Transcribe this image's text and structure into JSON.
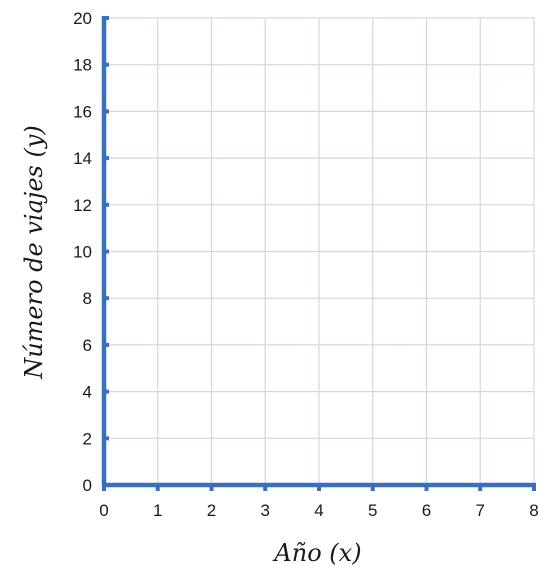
{
  "chart_data": {
    "type": "scatter",
    "title": "",
    "xlabel": "Año (x)",
    "ylabel": "Número de viajes (y)",
    "xlim": [
      0,
      8
    ],
    "ylim": [
      0,
      20
    ],
    "x_ticks": [
      0,
      1,
      2,
      3,
      4,
      5,
      6,
      7,
      8
    ],
    "y_ticks": [
      0,
      2,
      4,
      6,
      8,
      10,
      12,
      14,
      16,
      18,
      20
    ],
    "series": [],
    "grid": true,
    "legend": "none",
    "colors": {
      "axis": "#3a6fc0",
      "grid": "#d0d7e4",
      "text": "#1a1a1a"
    }
  }
}
